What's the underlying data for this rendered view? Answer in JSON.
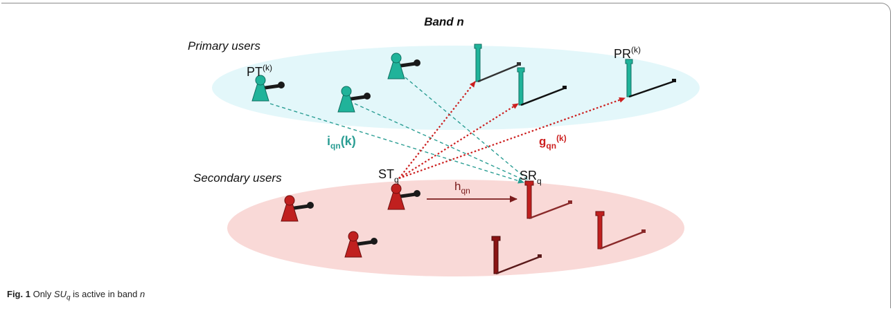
{
  "title": "Band n",
  "groups": {
    "primary": "Primary users",
    "secondary": "Secondary users"
  },
  "nodes": {
    "pt": {
      "main": "PT",
      "sup": "(k)"
    },
    "pr": {
      "main": "PR",
      "sup": "(k)"
    },
    "st": {
      "main": "ST",
      "sub": "q"
    },
    "sr": {
      "main": "SR",
      "sub": "q"
    }
  },
  "links": {
    "i": {
      "main": "i",
      "sub": "qn",
      "tail": "(k)"
    },
    "g": {
      "main": "g",
      "sub": "qn",
      "sup": "(k)"
    },
    "h": {
      "main": "h",
      "sub": "qn"
    }
  },
  "caption": {
    "fig": "Fig. 1",
    "text_before": "Only ",
    "su": "SU",
    "su_sub": "q",
    "text_after": " is active in band ",
    "band": "n"
  },
  "colors": {
    "primary_ellipse": "#e3f7fa",
    "secondary_ellipse": "#f9d9d7",
    "primary_node": "#20b39a",
    "secondary_node": "#c0201f",
    "interference_link": "#2a9d93",
    "cross_link": "#cc1f1f",
    "direct_link": "#7a1c1c"
  },
  "icons": [
    "transmitter-pawn-icon",
    "receiver-antenna-icon"
  ]
}
